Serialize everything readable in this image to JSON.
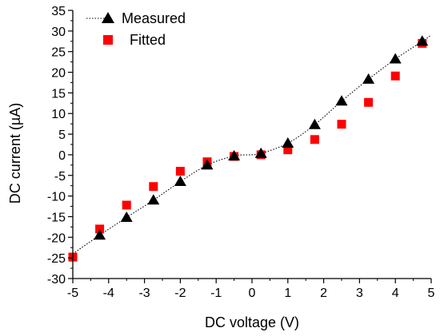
{
  "chart_data": {
    "type": "scatter",
    "xlabel": "DC voltage (V)",
    "ylabel": "DC current (µA)",
    "xlim": [
      -5,
      5
    ],
    "ylim": [
      -30,
      35
    ],
    "xticks": [
      -5,
      -4,
      -3,
      -2,
      -1,
      0,
      1,
      2,
      3,
      4,
      5
    ],
    "yticks": [
      -30,
      -25,
      -20,
      -15,
      -10,
      -5,
      0,
      5,
      10,
      15,
      20,
      25,
      30,
      35
    ],
    "grid": false,
    "legend_position": "top-left",
    "series": [
      {
        "name": "Measured",
        "marker": "triangle",
        "color": "#000000",
        "line": "dotted",
        "x": [
          -4.25,
          -3.5,
          -2.75,
          -2.0,
          -1.25,
          -0.5,
          0.25,
          1.0,
          1.75,
          2.5,
          3.25,
          4.0,
          4.75
        ],
        "y": [
          -19.5,
          -15.2,
          -11.0,
          -6.5,
          -2.5,
          -0.3,
          0.3,
          2.8,
          7.3,
          13.0,
          18.3,
          23.2,
          27.5
        ]
      },
      {
        "name": "Fitted",
        "marker": "square",
        "color": "#ff0000",
        "x": [
          -5.0,
          -4.25,
          -3.5,
          -2.75,
          -2.0,
          -1.25,
          -0.5,
          0.25,
          1.0,
          1.75,
          2.5,
          3.25,
          4.0,
          4.75
        ],
        "y": [
          -24.8,
          -18.0,
          -12.2,
          -7.7,
          -4.0,
          -1.7,
          -0.4,
          0.0,
          1.2,
          3.7,
          7.4,
          12.7,
          19.1,
          27.0
        ]
      }
    ],
    "fit_line_x": [
      -5.0,
      -4.25,
      -3.5,
      -2.75,
      -2.0,
      -1.25,
      -0.5,
      0.0,
      0.25,
      1.0,
      1.75,
      2.5,
      3.25,
      4.0,
      4.75,
      5.0
    ],
    "fit_line_y": [
      -24.0,
      -19.5,
      -15.2,
      -11.0,
      -6.5,
      -2.5,
      -0.3,
      0.0,
      0.3,
      2.8,
      7.3,
      13.0,
      18.3,
      23.2,
      27.5,
      29.0
    ]
  }
}
